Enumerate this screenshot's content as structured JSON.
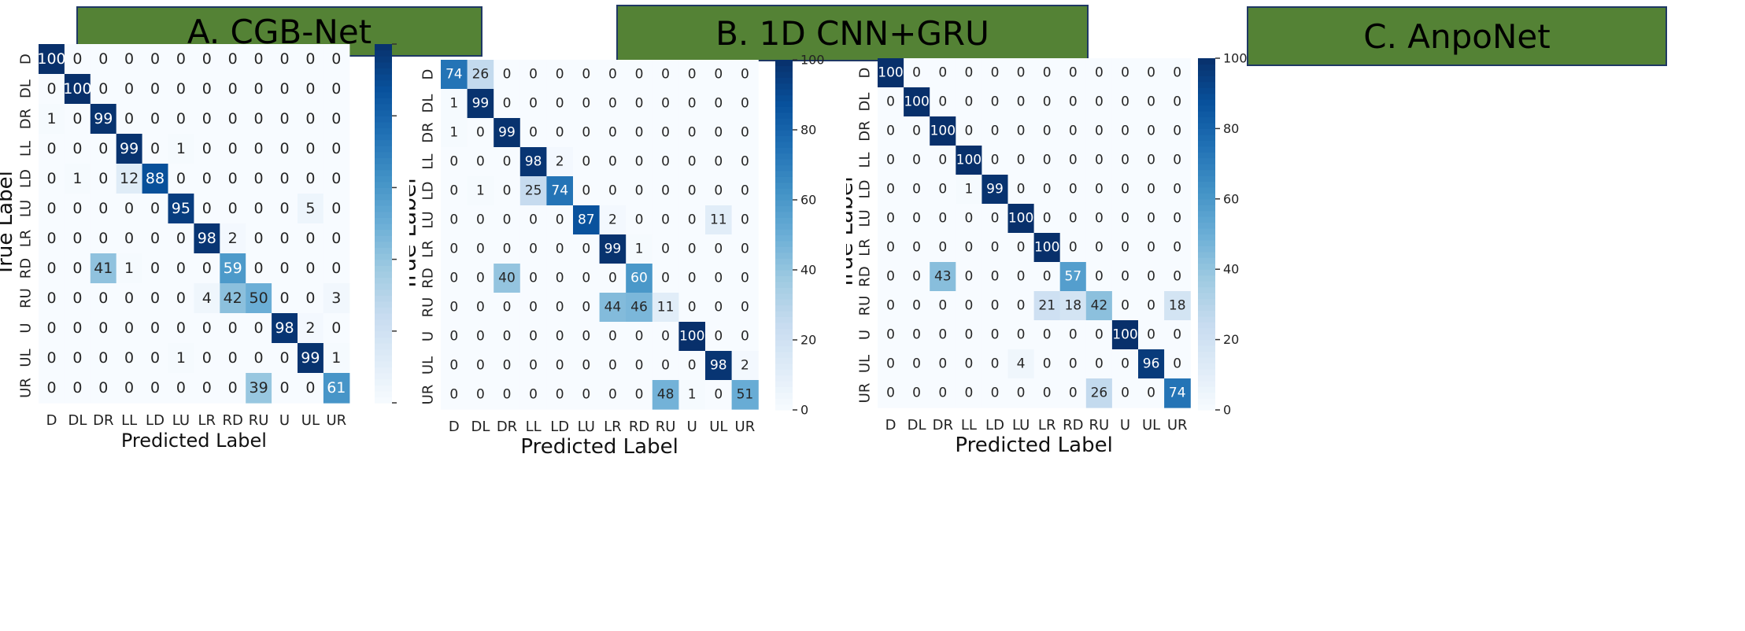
{
  "labels": [
    "D",
    "DL",
    "DR",
    "LL",
    "LD",
    "LU",
    "LR",
    "RD",
    "RU",
    "U",
    "UL",
    "UR"
  ],
  "xlabel": "Predicted Label",
  "ylabel": "True Label",
  "colormap": {
    "name": "Blues",
    "low": "#f7fbff",
    "high": "#08306b"
  },
  "chart_data": [
    {
      "type": "heatmap",
      "title": "A. CGB-Net",
      "xlabel": "Predicted Label",
      "ylabel": "True Label",
      "categories": [
        "D",
        "DL",
        "DR",
        "LL",
        "LD",
        "LU",
        "LR",
        "RD",
        "RU",
        "U",
        "UL",
        "UR"
      ],
      "vmin": 0,
      "vmax": 100,
      "colorbar_ticks": [],
      "matrix": [
        [
          100,
          0,
          0,
          0,
          0,
          0,
          0,
          0,
          0,
          0,
          0,
          0
        ],
        [
          0,
          100,
          0,
          0,
          0,
          0,
          0,
          0,
          0,
          0,
          0,
          0
        ],
        [
          1,
          0,
          99,
          0,
          0,
          0,
          0,
          0,
          0,
          0,
          0,
          0
        ],
        [
          0,
          0,
          0,
          99,
          0,
          1,
          0,
          0,
          0,
          0,
          0,
          0
        ],
        [
          0,
          1,
          0,
          12,
          88,
          0,
          0,
          0,
          0,
          0,
          0,
          0
        ],
        [
          0,
          0,
          0,
          0,
          0,
          95,
          0,
          0,
          0,
          0,
          5,
          0
        ],
        [
          0,
          0,
          0,
          0,
          0,
          0,
          98,
          2,
          0,
          0,
          0,
          0
        ],
        [
          0,
          0,
          41,
          1,
          0,
          0,
          0,
          59,
          0,
          0,
          0,
          0
        ],
        [
          0,
          0,
          0,
          0,
          0,
          0,
          4,
          42,
          50,
          0,
          0,
          3
        ],
        [
          0,
          0,
          0,
          0,
          0,
          0,
          0,
          0,
          0,
          98,
          2,
          0
        ],
        [
          0,
          0,
          0,
          0,
          0,
          1,
          0,
          0,
          0,
          0,
          99,
          1
        ],
        [
          0,
          0,
          0,
          0,
          0,
          0,
          0,
          0,
          39,
          0,
          0,
          61
        ]
      ]
    },
    {
      "type": "heatmap",
      "title": "B. 1D CNN+GRU",
      "xlabel": "Predicted Label",
      "ylabel": "True Label",
      "categories": [
        "D",
        "DL",
        "DR",
        "LL",
        "LD",
        "LU",
        "LR",
        "RD",
        "RU",
        "U",
        "UL",
        "UR"
      ],
      "vmin": 0,
      "vmax": 100,
      "colorbar_ticks": [
        0,
        20,
        40,
        60,
        80,
        100
      ],
      "matrix": [
        [
          74,
          26,
          0,
          0,
          0,
          0,
          0,
          0,
          0,
          0,
          0,
          0
        ],
        [
          1,
          99,
          0,
          0,
          0,
          0,
          0,
          0,
          0,
          0,
          0,
          0
        ],
        [
          1,
          0,
          99,
          0,
          0,
          0,
          0,
          0,
          0,
          0,
          0,
          0
        ],
        [
          0,
          0,
          0,
          98,
          2,
          0,
          0,
          0,
          0,
          0,
          0,
          0
        ],
        [
          0,
          1,
          0,
          25,
          74,
          0,
          0,
          0,
          0,
          0,
          0,
          0
        ],
        [
          0,
          0,
          0,
          0,
          0,
          87,
          2,
          0,
          0,
          0,
          11,
          0
        ],
        [
          0,
          0,
          0,
          0,
          0,
          0,
          99,
          1,
          0,
          0,
          0,
          0
        ],
        [
          0,
          0,
          40,
          0,
          0,
          0,
          0,
          60,
          0,
          0,
          0,
          0
        ],
        [
          0,
          0,
          0,
          0,
          0,
          0,
          44,
          46,
          11,
          0,
          0,
          0
        ],
        [
          0,
          0,
          0,
          0,
          0,
          0,
          0,
          0,
          0,
          100,
          0,
          0
        ],
        [
          0,
          0,
          0,
          0,
          0,
          0,
          0,
          0,
          0,
          0,
          98,
          2
        ],
        [
          0,
          0,
          0,
          0,
          0,
          0,
          0,
          0,
          48,
          1,
          0,
          51
        ]
      ]
    },
    {
      "type": "heatmap",
      "title": "C. AnpoNet",
      "xlabel": "Predicted Label",
      "ylabel": "True Label",
      "categories": [
        "D",
        "DL",
        "DR",
        "LL",
        "LD",
        "LU",
        "LR",
        "RD",
        "RU",
        "U",
        "UL",
        "UR"
      ],
      "vmin": 0,
      "vmax": 100,
      "colorbar_ticks": [
        0,
        20,
        40,
        60,
        80,
        100
      ],
      "matrix": [
        [
          100,
          0,
          0,
          0,
          0,
          0,
          0,
          0,
          0,
          0,
          0,
          0
        ],
        [
          0,
          100,
          0,
          0,
          0,
          0,
          0,
          0,
          0,
          0,
          0,
          0
        ],
        [
          0,
          0,
          100,
          0,
          0,
          0,
          0,
          0,
          0,
          0,
          0,
          0
        ],
        [
          0,
          0,
          0,
          100,
          0,
          0,
          0,
          0,
          0,
          0,
          0,
          0
        ],
        [
          0,
          0,
          0,
          1,
          99,
          0,
          0,
          0,
          0,
          0,
          0,
          0
        ],
        [
          0,
          0,
          0,
          0,
          0,
          100,
          0,
          0,
          0,
          0,
          0,
          0
        ],
        [
          0,
          0,
          0,
          0,
          0,
          0,
          100,
          0,
          0,
          0,
          0,
          0
        ],
        [
          0,
          0,
          43,
          0,
          0,
          0,
          0,
          57,
          0,
          0,
          0,
          0
        ],
        [
          0,
          0,
          0,
          0,
          0,
          0,
          21,
          18,
          42,
          0,
          0,
          18
        ],
        [
          0,
          0,
          0,
          0,
          0,
          0,
          0,
          0,
          0,
          100,
          0,
          0
        ],
        [
          0,
          0,
          0,
          0,
          0,
          4,
          0,
          0,
          0,
          0,
          96,
          0
        ],
        [
          0,
          0,
          0,
          0,
          0,
          0,
          0,
          0,
          26,
          0,
          0,
          74
        ]
      ]
    }
  ]
}
